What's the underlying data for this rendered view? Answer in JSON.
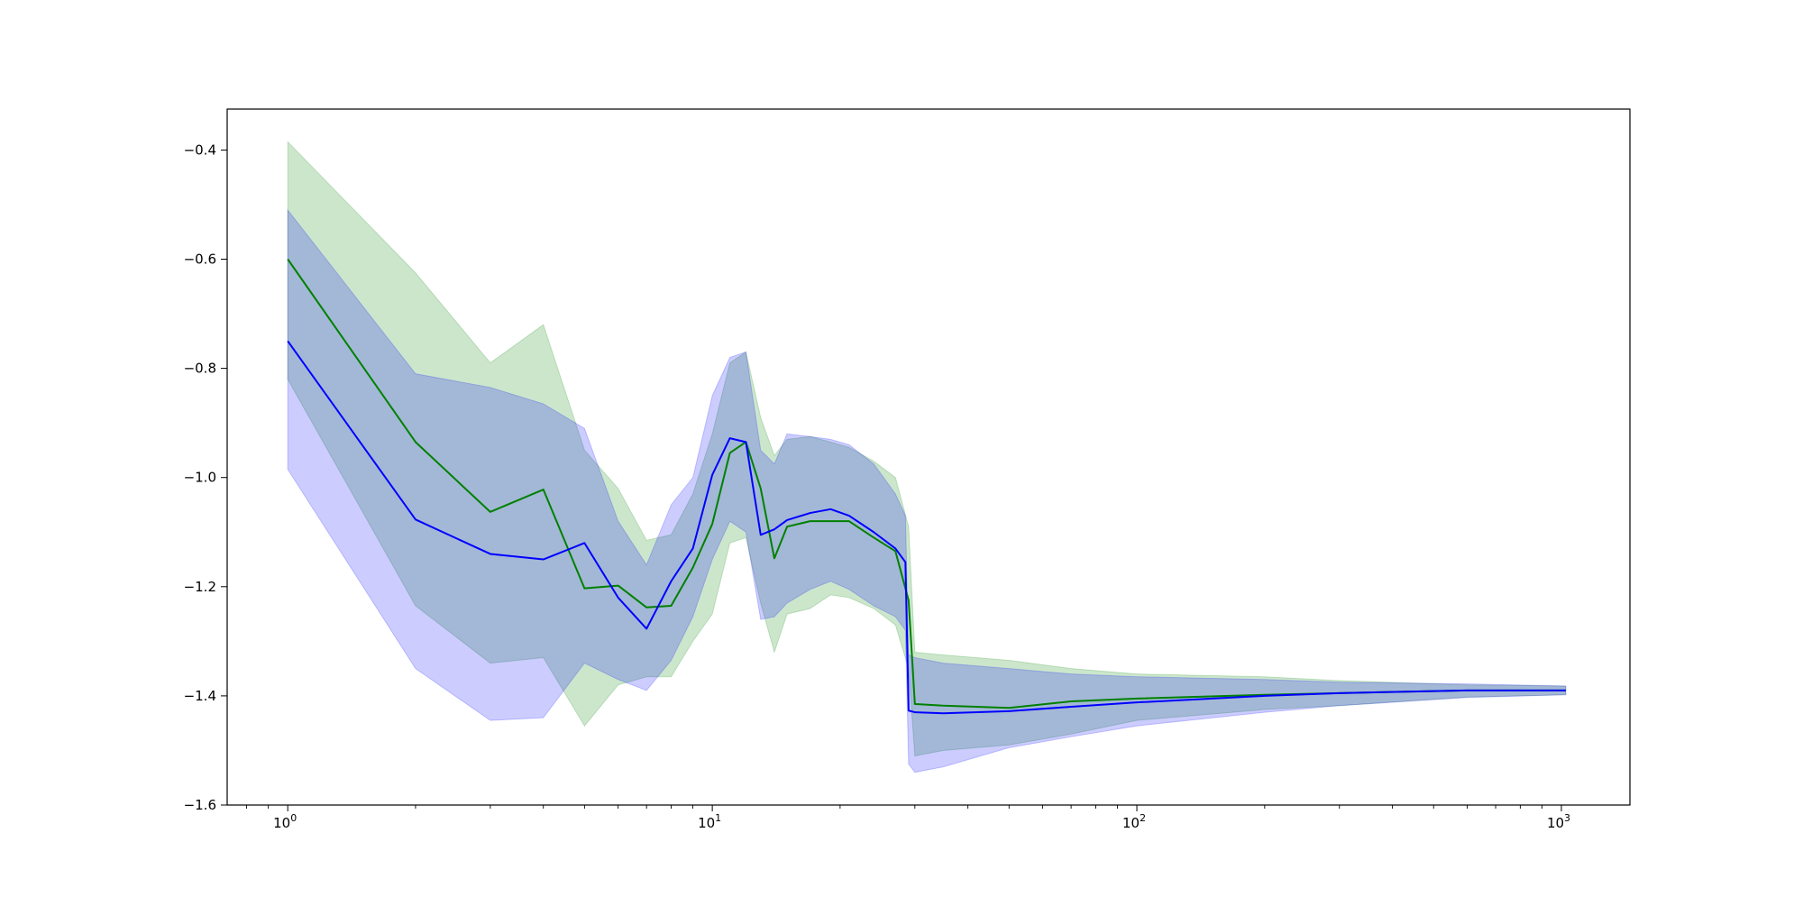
{
  "chart_data": {
    "type": "line",
    "title": "",
    "xlabel": "",
    "ylabel": "",
    "xscale": "log",
    "xlim": [
      0.72,
      1450
    ],
    "ylim": [
      -1.6,
      -0.325
    ],
    "grid": false,
    "legend": "none",
    "x_ticks": [
      {
        "base": "10",
        "exp": "0",
        "value": 1
      },
      {
        "base": "10",
        "exp": "1",
        "value": 10
      },
      {
        "base": "10",
        "exp": "2",
        "value": 100
      },
      {
        "base": "10",
        "exp": "3",
        "value": 1000
      }
    ],
    "y_ticks": [
      {
        "label": "−0.4",
        "value": -0.4
      },
      {
        "label": "−0.6",
        "value": -0.6
      },
      {
        "label": "−0.8",
        "value": -0.8
      },
      {
        "label": "−1.0",
        "value": -1.0
      },
      {
        "label": "−1.2",
        "value": -1.2
      },
      {
        "label": "−1.4",
        "value": -1.4
      },
      {
        "label": "−1.6",
        "value": -1.6
      }
    ],
    "series": [
      {
        "color": "#008000",
        "band_color": "#008000",
        "band_opacity": 0.2,
        "points": [
          [
            1,
            -0.6,
            -0.385,
            -0.82
          ],
          [
            2,
            -0.935,
            -0.625,
            -1.235
          ],
          [
            3,
            -1.063,
            -0.79,
            -1.34
          ],
          [
            4,
            -1.022,
            -0.72,
            -1.33
          ],
          [
            5,
            -1.203,
            -0.95,
            -1.455
          ],
          [
            6,
            -1.198,
            -1.02,
            -1.38
          ],
          [
            7,
            -1.238,
            -1.115,
            -1.365
          ],
          [
            8,
            -1.235,
            -1.105,
            -1.365
          ],
          [
            9,
            -1.165,
            -1.03,
            -1.3
          ],
          [
            10,
            -1.085,
            -0.92,
            -1.25
          ],
          [
            11,
            -0.955,
            -0.79,
            -1.12
          ],
          [
            12,
            -0.935,
            -0.77,
            -1.11
          ],
          [
            13,
            -1.02,
            -0.89,
            -1.23
          ],
          [
            14,
            -1.148,
            -0.96,
            -1.32
          ],
          [
            15,
            -1.09,
            -0.93,
            -1.25
          ],
          [
            17,
            -1.08,
            -0.925,
            -1.24
          ],
          [
            19,
            -1.08,
            -0.935,
            -1.215
          ],
          [
            21,
            -1.08,
            -0.945,
            -1.22
          ],
          [
            24,
            -1.11,
            -0.97,
            -1.24
          ],
          [
            27,
            -1.135,
            -1.0,
            -1.27
          ],
          [
            29,
            -1.225,
            -1.09,
            -1.35
          ],
          [
            30,
            -1.415,
            -1.32,
            -1.51
          ],
          [
            35,
            -1.418,
            -1.325,
            -1.5
          ],
          [
            50,
            -1.422,
            -1.335,
            -1.49
          ],
          [
            70,
            -1.41,
            -1.35,
            -1.47
          ],
          [
            100,
            -1.405,
            -1.36,
            -1.445
          ],
          [
            200,
            -1.398,
            -1.365,
            -1.425
          ],
          [
            300,
            -1.395,
            -1.372,
            -1.418
          ],
          [
            600,
            -1.39,
            -1.38,
            -1.402
          ],
          [
            1024,
            -1.39,
            -1.382,
            -1.398
          ]
        ]
      },
      {
        "color": "#0000ff",
        "band_color": "#0000ff",
        "band_opacity": 0.2,
        "points": [
          [
            1,
            -0.75,
            -0.51,
            -0.985
          ],
          [
            2,
            -1.077,
            -0.81,
            -1.35
          ],
          [
            3,
            -1.14,
            -0.835,
            -1.445
          ],
          [
            4,
            -1.15,
            -0.865,
            -1.44
          ],
          [
            5,
            -1.12,
            -0.91,
            -1.34
          ],
          [
            6,
            -1.22,
            -1.08,
            -1.37
          ],
          [
            7,
            -1.277,
            -1.16,
            -1.39
          ],
          [
            8,
            -1.19,
            -1.05,
            -1.335
          ],
          [
            9,
            -1.13,
            -1.0,
            -1.255
          ],
          [
            10,
            -0.995,
            -0.85,
            -1.15
          ],
          [
            11,
            -0.928,
            -0.78,
            -1.08
          ],
          [
            12,
            -0.935,
            -0.77,
            -1.1
          ],
          [
            13,
            -1.105,
            -0.95,
            -1.26
          ],
          [
            14,
            -1.095,
            -0.975,
            -1.255
          ],
          [
            15,
            -1.078,
            -0.92,
            -1.23
          ],
          [
            17,
            -1.065,
            -0.925,
            -1.205
          ],
          [
            19,
            -1.058,
            -0.93,
            -1.19
          ],
          [
            21,
            -1.07,
            -0.94,
            -1.205
          ],
          [
            24,
            -1.1,
            -0.975,
            -1.235
          ],
          [
            27,
            -1.13,
            -1.03,
            -1.255
          ],
          [
            28.5,
            -1.155,
            -1.07,
            -1.28
          ],
          [
            29,
            -1.427,
            -1.325,
            -1.525
          ],
          [
            30,
            -1.43,
            -1.33,
            -1.54
          ],
          [
            35,
            -1.432,
            -1.34,
            -1.53
          ],
          [
            50,
            -1.428,
            -1.35,
            -1.495
          ],
          [
            70,
            -1.42,
            -1.36,
            -1.475
          ],
          [
            100,
            -1.412,
            -1.365,
            -1.455
          ],
          [
            200,
            -1.4,
            -1.37,
            -1.43
          ],
          [
            300,
            -1.395,
            -1.375,
            -1.418
          ],
          [
            600,
            -1.39,
            -1.378,
            -1.403
          ],
          [
            1024,
            -1.39,
            -1.382,
            -1.398
          ]
        ]
      }
    ]
  }
}
